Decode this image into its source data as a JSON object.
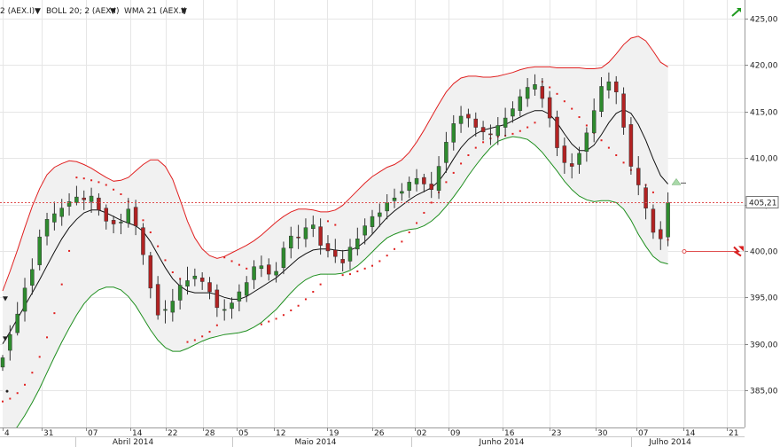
{
  "toolbar": {
    "indicators": [
      {
        "label": "2 (AEX.I)",
        "color": "#cc0000"
      },
      {
        "label": "BOLL 20; 2 (AEX.I)",
        "color": "#222222"
      },
      {
        "label": "WMA 21 (AEX.I)",
        "color": "#222222"
      }
    ],
    "dropdown_glyph": "▼"
  },
  "price_tag": "405,21",
  "colors": {
    "up_candle": "#2e8b2e",
    "down_candle": "#b22222",
    "upper_band": "#e02020",
    "lower_band": "#1f8f1f",
    "wma": "#111111",
    "sar": "#e02020",
    "band_fill": "#f1f1f1",
    "grid": "#e6e6e6"
  },
  "chart_data": {
    "type": "candlestick",
    "ylim": [
      381,
      427
    ],
    "y_ticks": [
      "385,00",
      "390,00",
      "395,00",
      "400,00",
      "405,00",
      "410,00",
      "415,00",
      "420,00",
      "425,00"
    ],
    "y_tick_values": [
      385,
      390,
      395,
      400,
      405,
      410,
      415,
      420,
      425
    ],
    "x_ticks": [
      "4",
      "31",
      "07",
      "14",
      "22",
      "28",
      "05",
      "12",
      "19",
      "26",
      "02",
      "09",
      "16",
      "23",
      "30",
      "07",
      "14",
      "21"
    ],
    "months": [
      "Abril 2014",
      "Maio 2014",
      "Junho 2014",
      "Julho 2014"
    ],
    "last_price": 405.21,
    "close": [
      388.5,
      391,
      393.2,
      396,
      398,
      401.5,
      403.4,
      404,
      404.6,
      405.3,
      405.8,
      405.5,
      405.9,
      404.4,
      403.2,
      402.9,
      403.1,
      404.5,
      402.7,
      399.6,
      396,
      393.1,
      393.7,
      394.6,
      396.3,
      396.8,
      397.3,
      396.7,
      395.6,
      393.9,
      393.7,
      394.4,
      395.6,
      396.6,
      398.3,
      398.4,
      397.5,
      397.8,
      400.3,
      401.6,
      401.4,
      402.5,
      402.8,
      400.6,
      400,
      399.4,
      398.7,
      400.4,
      401.3,
      402.7,
      403.7,
      404.1,
      405.2,
      405.7,
      406.4,
      407.4,
      407.8,
      407.2,
      406.6,
      409.1,
      411.7,
      413.7,
      414.5,
      414.3,
      413.3,
      412.8,
      412.5,
      413.5,
      414.3,
      415.3,
      416.6,
      417.6,
      417.9,
      416.4,
      414.3,
      411.1,
      409.5,
      409.1,
      410.5,
      412.7,
      415.1,
      417.7,
      418.2,
      417.1,
      413.3,
      409.1,
      407.1,
      404.6,
      402,
      401.3,
      405.2
    ],
    "open": [
      387.5,
      389.3,
      391.2,
      393.5,
      396.3,
      398.5,
      401.6,
      403.1,
      403.7,
      404.8,
      405.2,
      405.7,
      405.3,
      405.7,
      404.6,
      403.3,
      403.1,
      403,
      404.7,
      402.5,
      399.5,
      396.4,
      393.6,
      393.4,
      394.7,
      396.2,
      397,
      397.1,
      396.6,
      395.8,
      393.6,
      393.8,
      394.6,
      395.2,
      396.9,
      398.1,
      398.5,
      397.4,
      398.2,
      400.3,
      401.5,
      401.3,
      402.4,
      402.6,
      400.8,
      400.1,
      399.1,
      398.9,
      400.2,
      401.7,
      402.6,
      403.7,
      404.3,
      405.4,
      406.2,
      406.5,
      407.2,
      407.9,
      407.2,
      406.5,
      409.5,
      411.7,
      413.7,
      414.7,
      414.2,
      413.3,
      412.6,
      412.4,
      413.3,
      414.5,
      415.1,
      416.4,
      417.4,
      417.7,
      416.5,
      414.4,
      411.3,
      409.4,
      409.3,
      410.7,
      412.7,
      415,
      417.3,
      418.2,
      416.9,
      413.6,
      408.9,
      406.8,
      404.5,
      402.3,
      401.5
    ],
    "high": [
      388.8,
      392,
      394.5,
      397.1,
      399.2,
      402.3,
      404.1,
      405.3,
      405.6,
      406.2,
      407,
      406.5,
      406.8,
      406.2,
      405,
      403.8,
      404,
      405.7,
      405.5,
      403,
      399.9,
      397.3,
      394.7,
      395.9,
      397,
      398.3,
      398.1,
      397.7,
      397.2,
      396.4,
      394.8,
      395,
      396.4,
      397.3,
      399,
      399.5,
      399.2,
      398.8,
      401,
      402.6,
      402.8,
      403.5,
      403.8,
      403.5,
      401.7,
      401.3,
      400.1,
      401.3,
      402.5,
      403.5,
      404.4,
      405.1,
      406.1,
      406.7,
      407.3,
      408,
      408.8,
      408.3,
      408.5,
      410.2,
      412.8,
      414.6,
      415.6,
      415.3,
      414.9,
      414,
      413.6,
      414.4,
      415.4,
      416.1,
      417.4,
      418.6,
      419,
      418.6,
      417.2,
      415.1,
      412.2,
      410.5,
      411.2,
      413.3,
      416.4,
      418.7,
      419.2,
      418.8,
      417.6,
      414.4,
      410.2,
      407.2,
      405,
      403.2,
      406.3
    ],
    "low": [
      387.1,
      388.2,
      390.9,
      392.4,
      395.3,
      397.9,
      400.6,
      402.2,
      402.7,
      403.8,
      404.9,
      404.4,
      404.1,
      403.8,
      402.3,
      401.9,
      401.8,
      402.5,
      401.7,
      398.5,
      394.9,
      392.6,
      392.2,
      392.4,
      393.7,
      395.3,
      396.2,
      395.8,
      394.8,
      392.9,
      392.5,
      392.7,
      393.5,
      394.5,
      395.9,
      397.2,
      396.8,
      396.6,
      397.5,
      399.2,
      400.2,
      400.4,
      401.5,
      399.6,
      399.3,
      398.7,
      397.8,
      398,
      399.5,
      400.7,
      401.8,
      402.6,
      403.4,
      404.6,
      405.4,
      405.7,
      406.4,
      406.3,
      405.7,
      405.6,
      408.4,
      410.8,
      412.7,
      413.3,
      412.3,
      411.9,
      411.4,
      411.4,
      412.3,
      413.8,
      414.5,
      415.5,
      416.7,
      415.4,
      413.3,
      410.2,
      408.3,
      407.8,
      408.3,
      409.6,
      411.7,
      414.4,
      416.4,
      415.8,
      412.5,
      408.2,
      406,
      403.4,
      401.3,
      400.1,
      400.5
    ],
    "bollinger_upper": [
      395.7,
      397.8,
      400.1,
      402.5,
      404.8,
      406.7,
      408.2,
      409,
      409.4,
      409.7,
      409.6,
      409.3,
      408.9,
      408.4,
      407.9,
      407.5,
      407.6,
      407.9,
      408.6,
      409.3,
      409.8,
      409.8,
      409.1,
      407.7,
      405.5,
      403.2,
      401.4,
      400.2,
      399.5,
      399.2,
      399.4,
      399.8,
      400.2,
      400.6,
      401.1,
      401.7,
      402.4,
      403.1,
      403.7,
      404.2,
      404.5,
      404.5,
      404.4,
      404.2,
      404.2,
      404.4,
      404.9,
      405.7,
      406.5,
      407.3,
      408,
      408.5,
      409,
      409.3,
      409.8,
      410.6,
      411.7,
      413,
      414.4,
      415.8,
      417.1,
      418,
      418.6,
      418.8,
      418.8,
      418.7,
      418.7,
      418.8,
      419,
      419.2,
      419.5,
      419.7,
      419.8,
      419.8,
      419.8,
      419.7,
      419.7,
      419.7,
      419.7,
      419.6,
      419.6,
      419.7,
      420.3,
      421.2,
      422.2,
      422.9,
      423.1,
      422.6,
      421.5,
      420.3,
      419.8
    ],
    "bollinger_lower": [
      379,
      380.1,
      381.1,
      382.3,
      383.7,
      385.2,
      386.9,
      388.6,
      390.2,
      391.7,
      393.1,
      394.3,
      395.2,
      395.8,
      396.1,
      396.1,
      395.8,
      395.1,
      394.1,
      392.8,
      391.5,
      390.4,
      389.6,
      389.2,
      389.2,
      389.5,
      389.9,
      390.3,
      390.6,
      390.8,
      391,
      391.1,
      391.2,
      391.4,
      391.8,
      392.3,
      393,
      393.7,
      394.6,
      395.5,
      396.3,
      396.9,
      397.3,
      397.5,
      397.5,
      397.5,
      397.6,
      397.9,
      398.4,
      399.1,
      399.9,
      400.7,
      401.4,
      401.8,
      402.1,
      402.3,
      402.4,
      402.7,
      403.2,
      403.9,
      404.8,
      405.8,
      406.9,
      408.1,
      409.2,
      410.2,
      411.1,
      411.8,
      412.1,
      412.3,
      412.2,
      412,
      411.4,
      410.6,
      409.6,
      408.6,
      407.5,
      406.6,
      405.9,
      405.5,
      405.3,
      405.4,
      405.4,
      405.2,
      404.5,
      403.3,
      401.8,
      400.5,
      399.4,
      398.8,
      398.6
    ],
    "wma": [
      390,
      391.3,
      392.7,
      394.1,
      395.5,
      396.9,
      398.4,
      399.9,
      401.3,
      402.5,
      403.4,
      404.1,
      404.4,
      404.4,
      404.1,
      403.7,
      403.3,
      403,
      402.7,
      402.1,
      401,
      399.6,
      398.2,
      397,
      396.2,
      395.7,
      395.5,
      395.5,
      395.5,
      395.3,
      395,
      394.8,
      394.8,
      395.1,
      395.6,
      396.1,
      396.6,
      397.1,
      397.8,
      398.5,
      399.2,
      399.7,
      400.1,
      400.2,
      400.2,
      400.1,
      400,
      400.1,
      400.4,
      401,
      401.8,
      402.7,
      403.6,
      404.3,
      404.9,
      405.5,
      406,
      406.4,
      406.8,
      407.5,
      408.6,
      409.9,
      411.1,
      412,
      412.6,
      413,
      413.2,
      413.4,
      413.6,
      414,
      414.4,
      414.8,
      415.1,
      415.1,
      414.7,
      413.8,
      412.6,
      411.5,
      410.8,
      410.8,
      411.4,
      412.5,
      413.8,
      414.8,
      415.2,
      414.8,
      413.6,
      411.9,
      409.9,
      408.1,
      407.2
    ],
    "parabolic_sar": [
      383.8,
      384.1,
      384.7,
      385.6,
      386.9,
      388.6,
      390.7,
      393.3,
      396.4,
      400,
      407.9,
      407.8,
      407.6,
      407.4,
      407.1,
      406.6,
      406.1,
      405.3,
      404.4,
      403.3,
      402,
      400.5,
      399,
      397.7,
      397,
      390.2,
      390.4,
      390.8,
      391.3,
      392,
      399.3,
      398.9,
      398.5,
      398.1,
      397.8,
      392.1,
      392.4,
      392.7,
      393.1,
      393.6,
      394.1,
      394.8,
      395.6,
      396.4,
      403.2,
      402.8,
      397.4,
      397.5,
      397.8,
      398.1,
      398.4,
      398.9,
      399.5,
      400.2,
      401,
      402,
      403,
      404.1,
      405.2,
      406.3,
      407.4,
      408.4,
      409.4,
      410.3,
      411.1,
      411.7,
      412.1,
      412.3,
      412.4,
      412.6,
      412.9,
      413.3,
      413.8,
      418.2,
      417.6,
      416.9,
      416.1,
      415.3,
      414.4,
      413.5,
      412.7,
      411.9,
      411.1,
      410.3,
      409.5,
      408.7,
      407.9,
      407.1,
      406.3,
      401.5,
      401.2
    ]
  }
}
